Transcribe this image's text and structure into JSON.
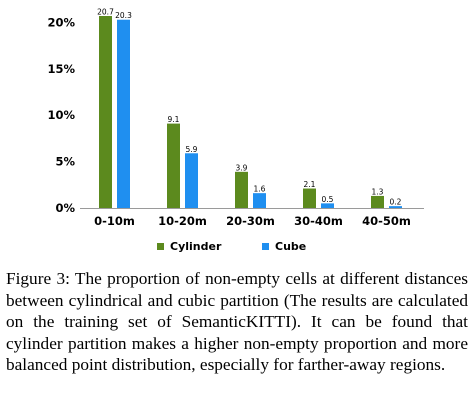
{
  "chart_data": {
    "type": "bar",
    "categories": [
      "0-10m",
      "10-20m",
      "20-30m",
      "30-40m",
      "40-50m"
    ],
    "series": [
      {
        "name": "Cylinder",
        "values": [
          20.7,
          9.1,
          3.9,
          2.1,
          1.3
        ],
        "labels": [
          "20.7",
          "9.1",
          "3.9",
          "2.1",
          "1.3"
        ],
        "color": "#5c8a1e"
      },
      {
        "name": "Cube",
        "values": [
          20.3,
          5.9,
          1.6,
          0.5,
          0.2
        ],
        "labels": [
          "20.3",
          "5.9",
          "1.6",
          "0.5",
          "0.2"
        ],
        "color": "#1f8ff0"
      }
    ],
    "yticks": [
      0,
      5,
      10,
      15,
      20
    ],
    "ytick_labels": [
      "0%",
      "5%",
      "10%",
      "15%",
      "20%"
    ],
    "ylim": [
      0,
      20.7
    ],
    "xlabel": "",
    "ylabel": "",
    "grid": false,
    "legend_position": "bottom"
  },
  "caption": "Figure 3: The proportion of non-empty cells at different distances between cylindrical and cubic partition (The results are calculated on the training set of SemanticKITTI). It can be found that cylinder partition makes a higher non-empty proportion and more balanced point distribution, especially for farther-away regions."
}
